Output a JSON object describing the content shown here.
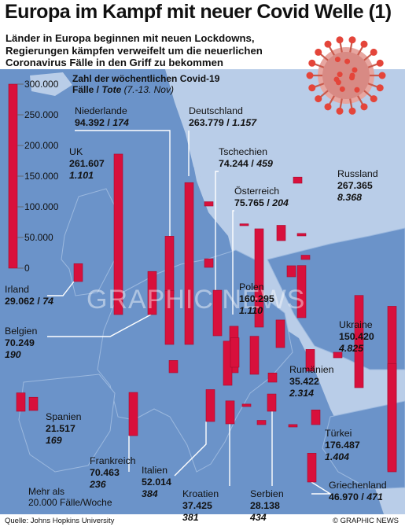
{
  "title": "Europa im Kampf mit neuer Covid Welle (1)",
  "subtitle": "Länder in Europa beginnen mit neuen Lockdowns,\nRegierungen kämpfen verweifelt um die neuerlichen\nCoronavirus Fälle in den Griff zu  bekommen",
  "legend_title": {
    "line1": "Zahl der wöchentlichen Covid-19",
    "line2a": "Fälle / ",
    "line2b": "Tote",
    "line2c": " (7.-13.  Nov)"
  },
  "map_legend": {
    "line1": "Mehr als",
    "line2": "20.000 Fälle/Woche"
  },
  "source": "Quelle: Johns Hopkins University",
  "credit": "© GRAPHIC NEWS",
  "watermark": "GRAPHIC NEWS",
  "colors": {
    "sea": "#6b93c9",
    "land": "#b9cde8",
    "highlight": "#6b93c9",
    "bar": "#d8103c",
    "bar_edge": "#a50a2c"
  },
  "chart_data": {
    "type": "bar",
    "title": "Zahl der wöchentlichen Covid-19 Fälle / Tote (7.-13.  Nov)",
    "ylim": [
      0,
      300000
    ],
    "y_ticks": [
      "300.000",
      "250.000",
      "200.000",
      "150.000",
      "100.000",
      "50.000",
      "0"
    ],
    "labeled": [
      {
        "name": "Irland",
        "cases": 29062,
        "cases_text": "29.062",
        "deaths_text": "74"
      },
      {
        "name": "UK",
        "cases": 261607,
        "cases_text": "261.607",
        "deaths_text": "1.101"
      },
      {
        "name": "Niederlande",
        "cases": 94392,
        "cases_text": "94.392",
        "deaths_text": "174"
      },
      {
        "name": "Belgien",
        "cases": 70249,
        "cases_text": "70.249",
        "deaths_text": "190"
      },
      {
        "name": "Deutschland",
        "cases": 263779,
        "cases_text": "263.779",
        "deaths_text": "1.157"
      },
      {
        "name": "Tschechien",
        "cases": 74244,
        "cases_text": "74.244",
        "deaths_text": "459"
      },
      {
        "name": "Österreich",
        "cases": 75765,
        "cases_text": "75.765",
        "deaths_text": "204"
      },
      {
        "name": "Polen",
        "cases": 160295,
        "cases_text": "160.295",
        "deaths_text": "1.110"
      },
      {
        "name": "Russland",
        "cases": 267365,
        "cases_text": "267.365",
        "deaths_text": "8.368"
      },
      {
        "name": "Ukraine",
        "cases": 150420,
        "cases_text": "150.420",
        "deaths_text": "4.825"
      },
      {
        "name": "Rumänien",
        "cases": 35422,
        "cases_text": "35.422",
        "deaths_text": "2.314"
      },
      {
        "name": "Spanien",
        "cases": 21517,
        "cases_text": "21.517",
        "deaths_text": "169"
      },
      {
        "name": "Frankreich",
        "cases": 70463,
        "cases_text": "70.463",
        "deaths_text": "236"
      },
      {
        "name": "Italien",
        "cases": 52014,
        "cases_text": "52.014",
        "deaths_text": "384"
      },
      {
        "name": "Kroatien",
        "cases": 37425,
        "cases_text": "37.425",
        "deaths_text": "381"
      },
      {
        "name": "Serbien",
        "cases": 28138,
        "cases_text": "28.138",
        "deaths_text": "434"
      },
      {
        "name": "Türkei",
        "cases": 176487,
        "cases_text": "176.487",
        "deaths_text": "1.404"
      },
      {
        "name": "Griechenland",
        "cases": 46970,
        "cases_text": "46.970",
        "deaths_text": "471"
      }
    ],
    "unlabeled_bars": [
      {
        "cases": 7000
      },
      {
        "cases": 88000
      },
      {
        "cases": 14000
      },
      {
        "cases": 3000
      },
      {
        "cases": 25000
      },
      {
        "cases": 85000
      },
      {
        "cases": 10000
      },
      {
        "cases": 4000
      },
      {
        "cases": 7000
      },
      {
        "cases": 45000
      },
      {
        "cases": 62000
      },
      {
        "cases": 20000
      },
      {
        "cases": 72000
      },
      {
        "cases": 48000
      },
      {
        "cases": 18000
      },
      {
        "cases": 15000
      },
      {
        "cases": 9000
      },
      {
        "cases": 24000
      },
      {
        "cases": 4000
      },
      {
        "cases": 7000
      },
      {
        "cases": 4000
      },
      {
        "cases": 30000
      }
    ]
  }
}
